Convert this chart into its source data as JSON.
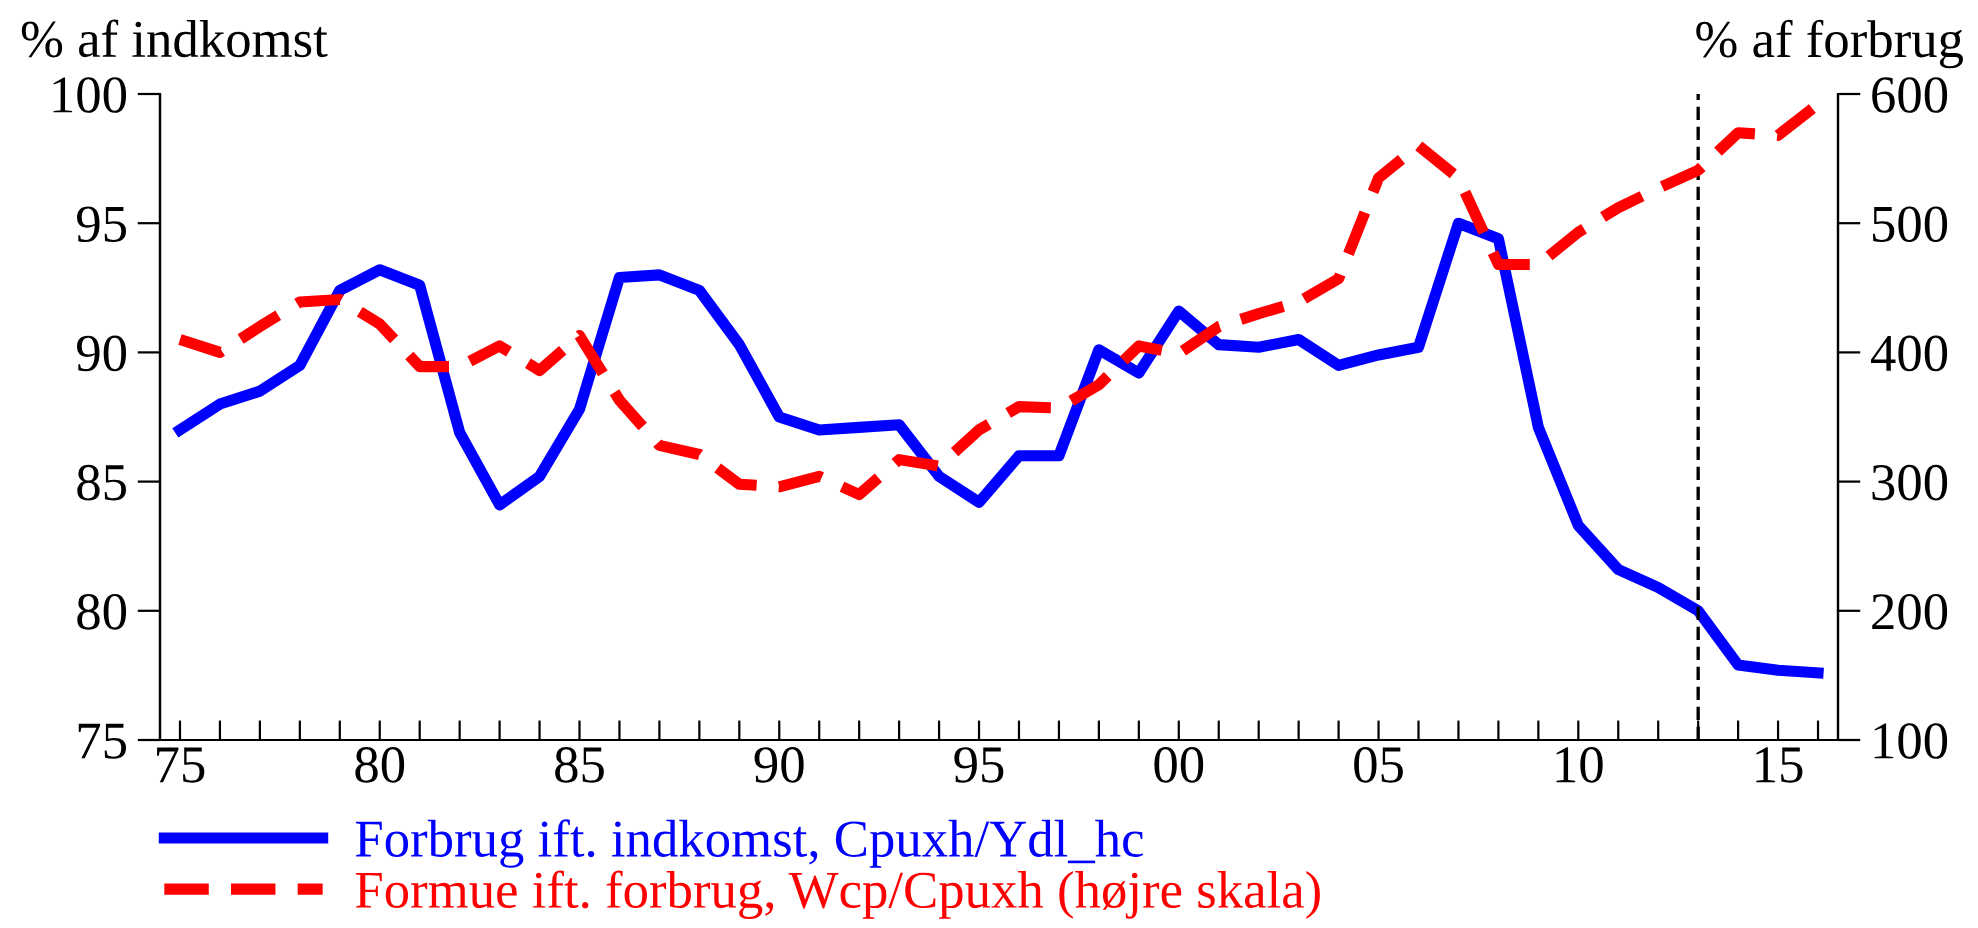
{
  "chart_data": {
    "type": "line",
    "ylabel": "% af indkomst",
    "y2label": "% af forbrug",
    "x": [
      1975,
      1976,
      1977,
      1978,
      1979,
      1980,
      1981,
      1982,
      1983,
      1984,
      1985,
      1986,
      1987,
      1988,
      1989,
      1990,
      1991,
      1992,
      1993,
      1994,
      1995,
      1996,
      1997,
      1998,
      1999,
      2000,
      2001,
      2002,
      2003,
      2004,
      2005,
      2006,
      2007,
      2008,
      2009,
      2010,
      2011,
      2012,
      2013,
      2014,
      2015,
      2016
    ],
    "series": [
      {
        "name": "Forbrug ift. indkomst, Cpuxh/Ydl_hc",
        "color": "#0000ff",
        "line_style": "solid",
        "values": [
          87.0,
          88.0,
          88.5,
          89.5,
          92.4,
          93.2,
          92.6,
          86.9,
          84.1,
          85.2,
          87.8,
          92.9,
          93.0,
          92.4,
          90.3,
          87.5,
          87.0,
          87.1,
          87.2,
          85.2,
          84.2,
          86.0,
          86.0,
          90.1,
          89.2,
          91.6,
          90.3,
          90.2,
          90.5,
          89.5,
          89.9,
          90.2,
          95.0,
          94.4,
          87.1,
          83.3,
          81.6,
          80.9,
          80.0,
          77.9,
          77.7,
          77.6
        ]
      },
      {
        "name": "Formue ift. forbrug, Wcp/Cpuxh (højre skala)",
        "color": "#ff0000",
        "line_style": "dashed",
        "axis": "y2",
        "values": [
          410,
          400,
          420,
          439,
          441,
          422,
          389,
          389,
          405,
          386,
          413,
          363,
          328,
          321,
          298,
          296,
          304,
          290,
          317,
          312,
          340,
          358,
          357,
          375,
          405,
          399,
          420,
          430,
          439,
          457,
          535,
          560,
          535,
          468,
          468,
          493,
          512,
          527,
          541,
          570,
          568,
          592
        ]
      }
    ],
    "xlim": [
      1974.5,
      2016.5
    ],
    "xticks": [
      {
        "value": 1975,
        "label": "75"
      },
      {
        "value": 1976,
        "label": null
      },
      {
        "value": 1977,
        "label": null
      },
      {
        "value": 1978,
        "label": null
      },
      {
        "value": 1979,
        "label": null
      },
      {
        "value": 1980,
        "label": "80"
      },
      {
        "value": 1981,
        "label": null
      },
      {
        "value": 1982,
        "label": null
      },
      {
        "value": 1983,
        "label": null
      },
      {
        "value": 1984,
        "label": null
      },
      {
        "value": 1985,
        "label": "85"
      },
      {
        "value": 1986,
        "label": null
      },
      {
        "value": 1987,
        "label": null
      },
      {
        "value": 1988,
        "label": null
      },
      {
        "value": 1989,
        "label": null
      },
      {
        "value": 1990,
        "label": "90"
      },
      {
        "value": 1991,
        "label": null
      },
      {
        "value": 1992,
        "label": null
      },
      {
        "value": 1993,
        "label": null
      },
      {
        "value": 1994,
        "label": null
      },
      {
        "value": 1995,
        "label": "95"
      },
      {
        "value": 1996,
        "label": null
      },
      {
        "value": 1997,
        "label": null
      },
      {
        "value": 1998,
        "label": null
      },
      {
        "value": 1999,
        "label": null
      },
      {
        "value": 2000,
        "label": "00"
      },
      {
        "value": 2001,
        "label": null
      },
      {
        "value": 2002,
        "label": null
      },
      {
        "value": 2003,
        "label": null
      },
      {
        "value": 2004,
        "label": null
      },
      {
        "value": 2005,
        "label": "05"
      },
      {
        "value": 2006,
        "label": null
      },
      {
        "value": 2007,
        "label": null
      },
      {
        "value": 2008,
        "label": null
      },
      {
        "value": 2009,
        "label": null
      },
      {
        "value": 2010,
        "label": "10"
      },
      {
        "value": 2011,
        "label": null
      },
      {
        "value": 2012,
        "label": null
      },
      {
        "value": 2013,
        "label": null
      },
      {
        "value": 2014,
        "label": null
      },
      {
        "value": 2015,
        "label": "15"
      },
      {
        "value": 2016,
        "label": null
      }
    ],
    "ylim": [
      75,
      100
    ],
    "yticks": [
      75,
      80,
      85,
      90,
      95,
      100
    ],
    "y2lim": [
      100,
      600
    ],
    "y2ticks": [
      100,
      200,
      300,
      400,
      500,
      600
    ],
    "ref_lines": [
      {
        "axis": "x",
        "value": 2013,
        "color": "#000000",
        "line_style": "dashed"
      }
    ],
    "grid": false,
    "legend": "bottom left",
    "marker": "none"
  }
}
